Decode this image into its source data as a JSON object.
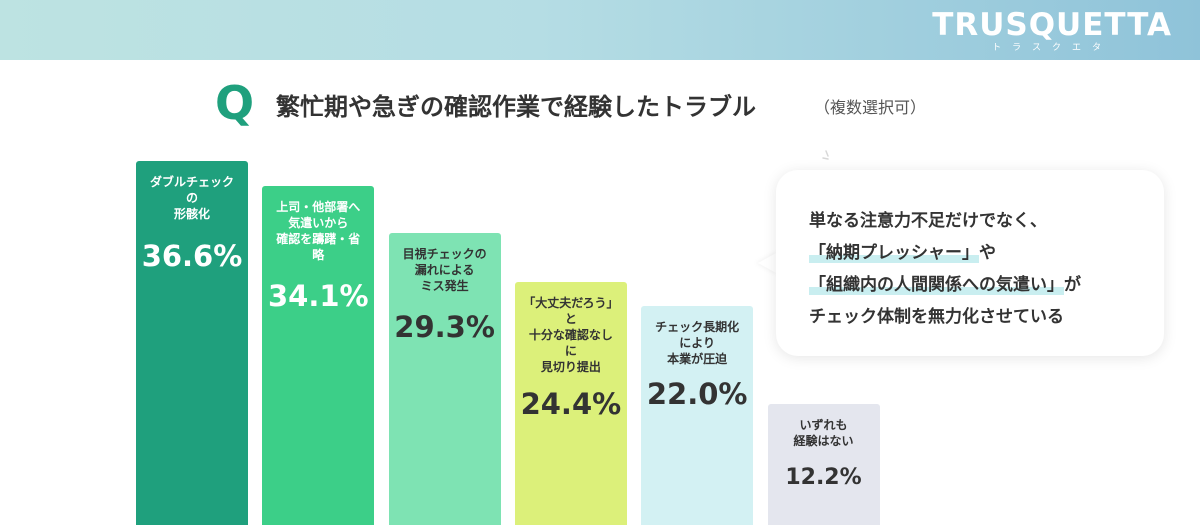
{
  "brand": {
    "name": "TRUSQUETTA",
    "kana": "トラスクエタ"
  },
  "question": {
    "mark": "Q",
    "title": "繁忙期や急ぎの確認作業で経験したトラブル",
    "note": "（複数選択可）"
  },
  "chart_data": {
    "type": "bar",
    "title": "繁忙期や急ぎの確認作業で経験したトラブル",
    "categories": [
      "ダブルチェックの形骸化",
      "上司・他部署へ気遣いから確認を躊躇・省略",
      "目視チェックの漏れによるミス発生",
      "「大丈夫だろう」と十分な確認なしに見切り提出",
      "チェック長期化により本業が圧迫",
      "いずれも経験はない"
    ],
    "label_lines": [
      "ダブルチェック\nの\n形骸化",
      "上司・他部署へ\n気遣いから\n確認を躊躇・省\n略",
      "目視チェックの\n漏れによる\nミス発生",
      "「大丈夫だろう」\nと\n十分な確認なし\nに\n見切り提出",
      "チェック長期化\nにより\n本業が圧迫",
      "いずれも\n経験はない"
    ],
    "values": [
      36.6,
      34.1,
      29.3,
      24.4,
      22.0,
      12.2
    ],
    "value_labels": [
      "36.6%",
      "34.1%",
      "29.3%",
      "24.4%",
      "22.0%",
      "12.2%"
    ],
    "unit": "%",
    "colors": [
      "#1fa07d",
      "#3ccf88",
      "#7ee3b3",
      "#dcf07a",
      "#d3f1f3",
      "#e4e6ee"
    ],
    "text_colors": [
      "#ffffff",
      "#ffffff",
      "#333333",
      "#333333",
      "#333333",
      "#333333"
    ]
  },
  "callout": {
    "line1": "単なる注意力不足だけでなく、",
    "line2_highlight": "「納期プレッシャー」",
    "line2_rest": "や",
    "line3_highlight": "「組織内の人間関係への気遣い」",
    "line3_rest": "が",
    "line4": "チェック体制を無力化させている"
  }
}
